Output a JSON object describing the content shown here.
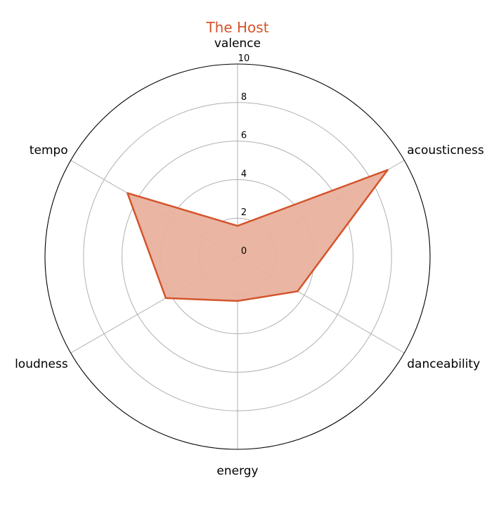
{
  "chart_data": {
    "type": "radar",
    "title": "The Host",
    "axes": [
      "valence",
      "acousticness",
      "danceability",
      "energy",
      "loudness",
      "tempo"
    ],
    "series": [
      {
        "values": [
          1.6,
          9.0,
          3.6,
          2.3,
          4.3,
          6.6
        ]
      }
    ],
    "r_ticks": [
      0,
      2,
      4,
      6,
      8,
      10
    ],
    "r_range": [
      0,
      10
    ],
    "grid": true,
    "colors": {
      "series": "#d4542a",
      "fill": "#e9b19e",
      "title": "#d4542a",
      "grid": "#b0b0b0",
      "frame": "#000000"
    }
  }
}
